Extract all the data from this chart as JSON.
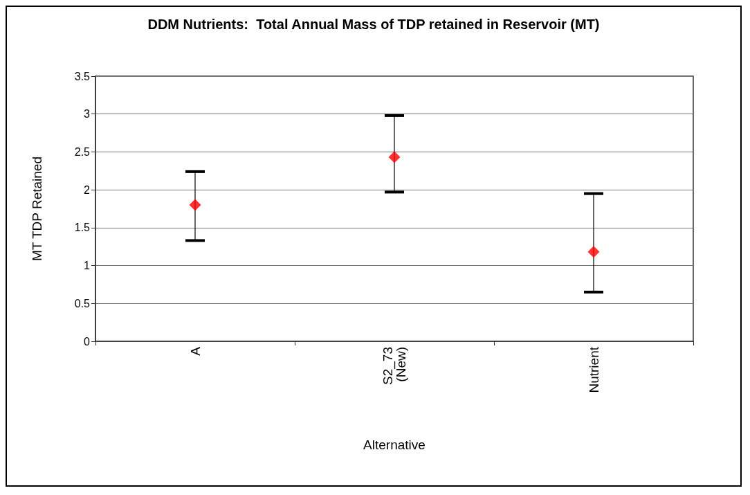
{
  "chart_data": {
    "type": "scatter",
    "title": "DDM Nutrients:  Total Annual Mass of TDP retained in Reservoir (MT)",
    "xlabel": "Alternative",
    "ylabel": "MT TDP Retained",
    "categories": [
      "A",
      "S2_73 (New)",
      "Nutrient"
    ],
    "series": [
      {
        "color": "#ff0000",
        "values": [
          1.8,
          2.43,
          1.18
        ],
        "errors": [
          [
            1.33,
            2.24
          ],
          [
            1.97,
            2.98
          ],
          [
            0.65,
            1.95
          ]
        ]
      }
    ],
    "ylim": [
      0,
      3.5
    ],
    "yticks": [
      0,
      0.5,
      1,
      1.5,
      2,
      2.5,
      3,
      3.5
    ],
    "grid": "y",
    "marker": "diamond"
  }
}
